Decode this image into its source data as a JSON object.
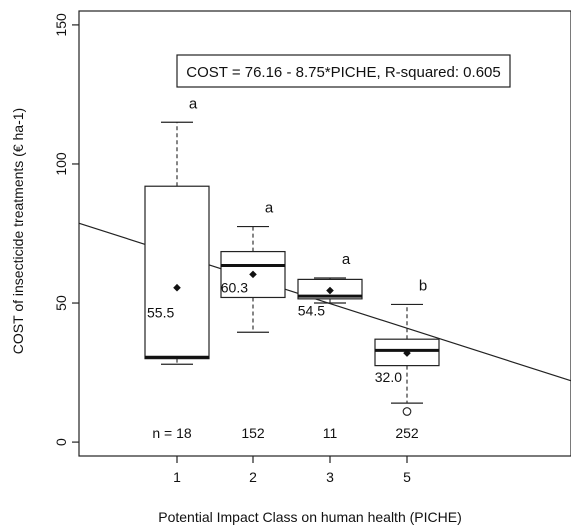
{
  "chart_data": {
    "type": "box",
    "ylabel": "COST of insecticide treatments (€ ha-1)",
    "xlabel": "Potential Impact Class on human health (PICHE)",
    "ylim": [
      -5,
      155
    ],
    "yticks": [
      0,
      50,
      100,
      150
    ],
    "categories": [
      "1",
      "2",
      "3",
      "5"
    ],
    "boxes": [
      {
        "category": "1",
        "whisker_low": 28,
        "q1": 30,
        "median": 30.5,
        "q3": 92,
        "whisker_high": 115,
        "mean": 55.5,
        "mean_label": "55.5",
        "n_label": "n = 18",
        "letter": "a",
        "outliers": []
      },
      {
        "category": "2",
        "whisker_low": 39.5,
        "q1": 52,
        "median": 63.5,
        "q3": 68.5,
        "whisker_high": 77.5,
        "mean": 60.3,
        "mean_label": "60.3",
        "n_label": "152",
        "letter": "a",
        "outliers": []
      },
      {
        "category": "3",
        "whisker_low": 50,
        "q1": 51.5,
        "median": 52.5,
        "q3": 58.5,
        "whisker_high": 59,
        "mean": 54.5,
        "mean_label": "54.5",
        "n_label": "11",
        "letter": "a",
        "outliers": []
      },
      {
        "category": "5",
        "whisker_low": 14,
        "q1": 27.5,
        "median": 33,
        "q3": 37,
        "whisker_high": 49.5,
        "mean": 32.0,
        "mean_label": "32.0",
        "n_label": "252",
        "letter": "b",
        "outliers": [
          11
        ]
      }
    ],
    "regression": {
      "intercept": 76.16,
      "slope": -8.75,
      "annotation": "COST = 76.16 - 8.75*PICHE, R-squared: 0.605"
    }
  }
}
